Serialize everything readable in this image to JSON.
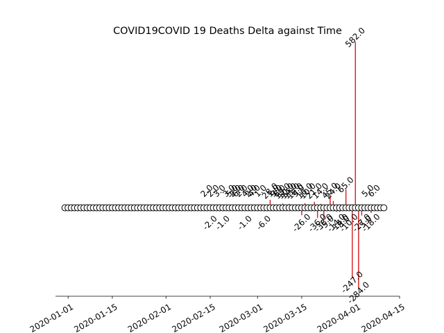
{
  "chart_data": {
    "type": "stem",
    "title": "COVID19COVID 19 Deaths Delta against Time",
    "xlabel": "",
    "ylabel": "",
    "start_date": "2019-12-31",
    "end_date": "2020-04-10",
    "xlim": [
      "2019-12-28",
      "2020-04-15"
    ],
    "ylim": [
      -310,
      590
    ],
    "baseline": 0,
    "grid": false,
    "stem_color": "#d62728",
    "marker_color": "#ffffff",
    "marker_edge": "#000000",
    "x_ticks": [
      "2020-01-01",
      "2020-01-15",
      "2020-02-01",
      "2020-02-15",
      "2020-03-01",
      "2020-03-15",
      "2020-04-01",
      "2020-04-15"
    ],
    "points": [
      {
        "x": "2020-02-14",
        "y": 2.0,
        "label": "2.0"
      },
      {
        "x": "2020-02-15",
        "y": -2.0,
        "label": "-2.0"
      },
      {
        "x": "2020-02-16",
        "y": 2.0,
        "label": "2.0"
      },
      {
        "x": "2020-02-18",
        "y": 3.0,
        "label": "3.0"
      },
      {
        "x": "2020-02-19",
        "y": -1.0,
        "label": "-1.0"
      },
      {
        "x": "2020-02-21",
        "y": 3.0,
        "label": "3.0"
      },
      {
        "x": "2020-02-22",
        "y": 5.0,
        "label": "5.0"
      },
      {
        "x": "2020-02-23",
        "y": 2.0,
        "label": "2.0"
      },
      {
        "x": "2020-02-24",
        "y": 6.0,
        "label": "6.0"
      },
      {
        "x": "2020-02-25",
        "y": 2.0,
        "label": "2.0"
      },
      {
        "x": "2020-02-26",
        "y": -1.0,
        "label": "-1.0"
      },
      {
        "x": "2020-02-27",
        "y": 4.0,
        "label": "4.0"
      },
      {
        "x": "2020-02-28",
        "y": 2.0,
        "label": "2.0"
      },
      {
        "x": "2020-02-29",
        "y": 4.0,
        "label": "4.0"
      },
      {
        "x": "2020-03-02",
        "y": 1.0,
        "label": "1.0"
      },
      {
        "x": "2020-03-03",
        "y": -6.0,
        "label": "-6.0"
      },
      {
        "x": "2020-03-05",
        "y": 28.0,
        "label": "28.0"
      },
      {
        "x": "2020-03-06",
        "y": 1.0,
        "label": "1.0"
      },
      {
        "x": "2020-03-07",
        "y": 9.0,
        "label": "9.0"
      },
      {
        "x": "2020-03-08",
        "y": 8.0,
        "label": "8.0"
      },
      {
        "x": "2020-03-09",
        "y": 15.0,
        "label": "15.0"
      },
      {
        "x": "2020-03-10",
        "y": 10.0,
        "label": "10.0"
      },
      {
        "x": "2020-03-11",
        "y": 14.0,
        "label": "14.0"
      },
      {
        "x": "2020-03-12",
        "y": 11.0,
        "label": "11.0"
      },
      {
        "x": "2020-03-13",
        "y": 12.0,
        "label": "12.0"
      },
      {
        "x": "2020-03-14",
        "y": 9.0,
        "label": "9.0"
      },
      {
        "x": "2020-03-15",
        "y": -26.0,
        "label": "-26.0"
      },
      {
        "x": "2020-03-16",
        "y": 16.0,
        "label": "16.0"
      },
      {
        "x": "2020-03-17",
        "y": 10.0,
        "label": "10.0"
      },
      {
        "x": "2020-03-19",
        "y": 21.0,
        "label": "21.0"
      },
      {
        "x": "2020-03-20",
        "y": -36.0,
        "label": "-36.0"
      },
      {
        "x": "2020-03-21",
        "y": 14.0,
        "label": "14.0"
      },
      {
        "x": "2020-03-22",
        "y": -38.0,
        "label": "-38.0"
      },
      {
        "x": "2020-03-23",
        "y": -5.0,
        "label": "-5.0"
      },
      {
        "x": "2020-03-24",
        "y": 45.0,
        "label": "45.0"
      },
      {
        "x": "2020-03-25",
        "y": 24.0,
        "label": "24.0"
      },
      {
        "x": "2020-03-26",
        "y": -14.0,
        "label": "-14.0"
      },
      {
        "x": "2020-03-27",
        "y": -14.0,
        "label": "-14.0"
      },
      {
        "x": "2020-03-28",
        "y": -8.0,
        "label": "-8.0"
      },
      {
        "x": "2020-03-29",
        "y": 65.0,
        "label": "65.0"
      },
      {
        "x": "2020-03-30",
        "y": -10.0,
        "label": "-10.0"
      },
      {
        "x": "2020-03-31",
        "y": -247.0,
        "label": "-247.0"
      },
      {
        "x": "2020-04-01",
        "y": 582.0,
        "label": "582.0"
      },
      {
        "x": "2020-04-02",
        "y": -284.0,
        "label": "-284.0"
      },
      {
        "x": "2020-04-03",
        "y": -27.0,
        "label": "-27.0"
      },
      {
        "x": "2020-04-04",
        "y": -5.0,
        "label": "-5.0"
      },
      {
        "x": "2020-04-05",
        "y": 5.0,
        "label": "5.0"
      },
      {
        "x": "2020-04-06",
        "y": -18.0,
        "label": "-18.0"
      },
      {
        "x": "2020-04-07",
        "y": 6.0,
        "label": "6.0"
      }
    ]
  }
}
